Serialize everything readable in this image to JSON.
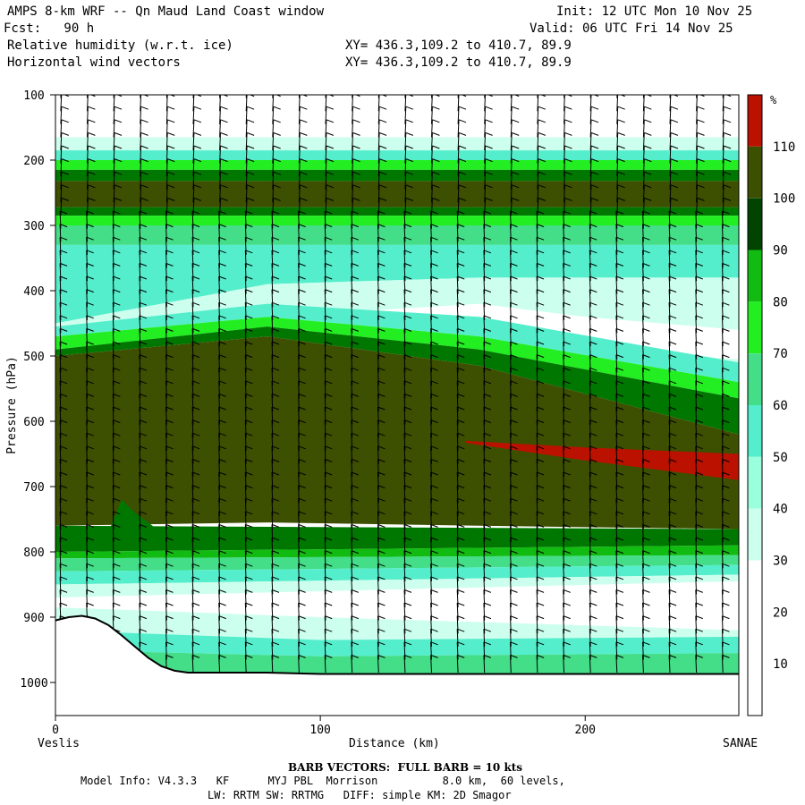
{
  "header": {
    "title": "AMPS 8-km WRF -- Qn Maud Land Coast window",
    "init": "Init: 12 UTC Mon 10 Nov 25",
    "fcst": "Fcst:   90 h",
    "valid": "Valid: 06 UTC Fri 14 Nov 25",
    "field1": "Relative humidity (w.r.t. ice)",
    "field2": "Horizontal wind vectors",
    "xy1": "XY= 436.3,109.2 to 410.7, 89.9",
    "xy2": "XY= 436.3,109.2 to 410.7, 89.9"
  },
  "chart_data": {
    "type": "heatmap",
    "ylabel": "Pressure (hPa)",
    "xlabel": "Distance (km)",
    "x_start_label": "Veslis",
    "x_end_label": "SANAE",
    "x_ticks": [
      0,
      100,
      200
    ],
    "y_ticks": [
      100,
      200,
      300,
      400,
      500,
      600,
      700,
      800,
      900,
      1000
    ],
    "xlim": [
      0,
      258
    ],
    "ylim": [
      1050,
      100
    ],
    "colorbar": {
      "unit": "%",
      "levels": [
        10,
        20,
        30,
        40,
        50,
        60,
        70,
        80,
        90,
        100,
        110
      ],
      "colors": [
        "#ffffff",
        "#ffffff",
        "#ffffff",
        "#ccffee",
        "#99ffdd",
        "#55eecc",
        "#44dd88",
        "#22ee22",
        "#11bb11",
        "#007700",
        "#004400",
        "#3d4f00",
        "#bb1100"
      ]
    },
    "terrain": {
      "x": [
        0,
        5,
        10,
        15,
        20,
        25,
        30,
        35,
        40,
        45,
        50,
        60,
        70,
        80,
        100,
        150,
        200,
        258
      ],
      "p": [
        905,
        900,
        898,
        902,
        912,
        928,
        945,
        962,
        975,
        982,
        985,
        985,
        985,
        985,
        987,
        987,
        987,
        987
      ]
    },
    "wind_note": "BARB VECTORS:  FULL BARB = 10 kts"
  },
  "footer": {
    "barb": "BARB VECTORS:  FULL BARB = 10 kts",
    "model1": "Model Info: V4.3.3   KF      MYJ PBL  Morrison          8.0 km,  60 levels,",
    "model2": "LW: RRTM SW: RRTMG   DIFF: simple KM: 2D Smagor"
  }
}
